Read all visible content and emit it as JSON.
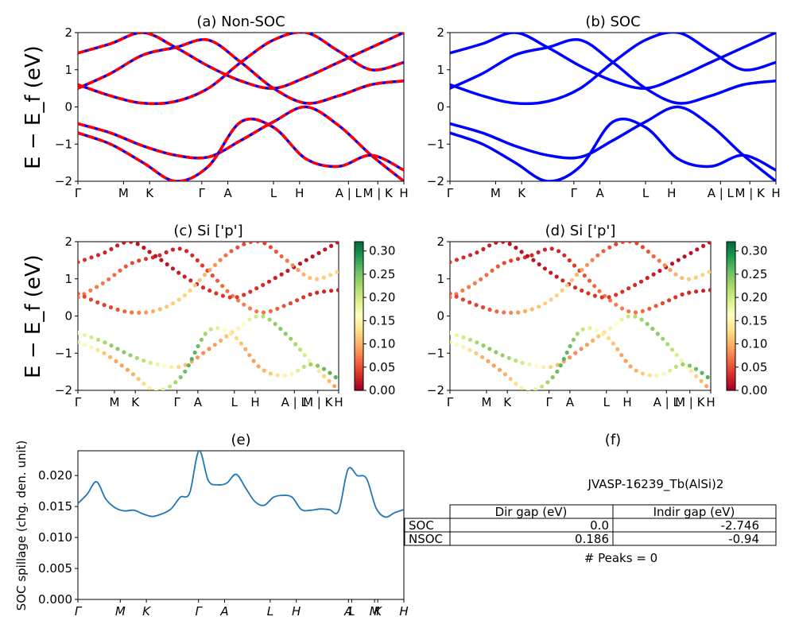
{
  "titles": {
    "a": "(a) Non-SOC",
    "b": "(b) SOC",
    "c": "(c)  Si ['p']",
    "d": "(d) Si ['p']",
    "e": "(e)",
    "f": "(f)"
  },
  "ylabels": {
    "top": "E − E_f (eV)",
    "mid": "E − E_f (eV)",
    "e": "SOC spillage (chg. den. unit)"
  },
  "kpath_labels": [
    "Γ",
    "M",
    "K",
    "Γ",
    "A",
    "L",
    "H",
    "A | L",
    "M | K",
    "H"
  ],
  "colors": {
    "red": "#ff0000",
    "blue": "#0000ff",
    "spillage": "#1f77b4"
  },
  "info": {
    "material": "JVASP-16239_Tb(AlSi)2",
    "peaks": "# Peaks = 0"
  },
  "table": {
    "headers": [
      "Dir gap (eV)",
      "Indir gap (eV)"
    ],
    "rows": [
      {
        "label": "SOC",
        "dir": "0.0",
        "indir": "-2.746"
      },
      {
        "label": "NSOC",
        "dir": "0.186",
        "indir": "-0.94"
      }
    ]
  },
  "chart_data": [
    {
      "id": "a",
      "type": "line",
      "title": "(a) Non-SOC",
      "ylabel": "E − E_f (eV)",
      "ylim": [
        -2,
        2
      ],
      "yticks": [
        -2,
        -1,
        0,
        1,
        2
      ],
      "xticks": [
        "Γ",
        "M",
        "K",
        "Γ",
        "A",
        "L",
        "H",
        "A | L",
        "M | K",
        "H"
      ],
      "series": [
        {
          "values": [
            -0.45,
            -0.7,
            -1.05,
            -1.3,
            -1.35,
            -0.9,
            -0.4,
            0.0,
            -0.5,
            -1.3,
            -2.0
          ]
        },
        {
          "values": [
            0.5,
            0.9,
            1.4,
            1.6,
            1.8,
            1.2,
            0.5,
            0.1,
            0.3,
            0.6,
            0.7
          ]
        },
        {
          "values": [
            1.45,
            1.7,
            2.0,
            1.6,
            1.1,
            0.7,
            0.5,
            0.8,
            1.2,
            1.6,
            2.0
          ]
        },
        {
          "values": [
            -0.7,
            -1.0,
            -1.5,
            -2.0,
            -1.6,
            -0.4,
            -0.55,
            -1.4,
            -1.6,
            -1.3,
            -1.7
          ]
        },
        {
          "values": [
            0.6,
            0.3,
            0.1,
            0.15,
            0.5,
            1.2,
            1.8,
            2.0,
            1.5,
            1.0,
            1.2
          ]
        }
      ]
    },
    {
      "id": "b",
      "type": "line",
      "title": "(b) SOC",
      "ylabel": "",
      "ylim": [
        -2,
        2
      ],
      "yticks": [
        -2,
        -1,
        0,
        1,
        2
      ],
      "xticks": [
        "Γ",
        "M",
        "K",
        "Γ",
        "A",
        "L",
        "H",
        "A | L",
        "M | K",
        "H"
      ],
      "series": [
        {
          "values": [
            -0.45,
            -0.7,
            -1.05,
            -1.3,
            -1.35,
            -0.9,
            -0.4,
            0.0,
            -0.5,
            -1.3,
            -2.0
          ]
        },
        {
          "values": [
            0.5,
            0.9,
            1.4,
            1.6,
            1.8,
            1.2,
            0.5,
            0.1,
            0.3,
            0.6,
            0.7
          ]
        },
        {
          "values": [
            1.45,
            1.7,
            2.0,
            1.6,
            1.1,
            0.7,
            0.5,
            0.8,
            1.2,
            1.6,
            2.0
          ]
        },
        {
          "values": [
            -0.7,
            -1.0,
            -1.5,
            -2.0,
            -1.6,
            -0.4,
            -0.55,
            -1.4,
            -1.6,
            -1.3,
            -1.7
          ]
        },
        {
          "values": [
            0.6,
            0.3,
            0.1,
            0.15,
            0.5,
            1.2,
            1.8,
            2.0,
            1.5,
            1.0,
            1.2
          ]
        }
      ]
    },
    {
      "id": "c",
      "type": "scatter",
      "title": "(c)  Si ['p']",
      "ylabel": "E − E_f (eV)",
      "ylim": [
        -2,
        2
      ],
      "yticks": [
        -2,
        -1,
        0,
        1,
        2
      ],
      "xticks": [
        "Γ",
        "M",
        "K",
        "Γ",
        "A",
        "L",
        "H",
        "A | L",
        "M | K",
        "H"
      ],
      "colorbar": {
        "range": [
          0,
          0.32
        ],
        "ticks": [
          0.0,
          0.05,
          0.1,
          0.15,
          0.2,
          0.25,
          0.3
        ]
      },
      "series": [
        {
          "values": [
            -0.45,
            -0.7,
            -1.05,
            -1.3,
            -1.35,
            -0.9,
            -0.4,
            0.0,
            -0.5,
            -1.3,
            -2.0
          ],
          "weight": 0.2
        },
        {
          "values": [
            0.5,
            0.9,
            1.4,
            1.6,
            1.8,
            1.2,
            0.5,
            0.1,
            0.3,
            0.6,
            0.7
          ],
          "weight": 0.06
        },
        {
          "values": [
            1.45,
            1.7,
            2.0,
            1.6,
            1.1,
            0.7,
            0.5,
            0.8,
            1.2,
            1.6,
            2.0
          ],
          "weight": 0.03
        },
        {
          "values": [
            -0.7,
            -1.0,
            -1.5,
            -2.0,
            -1.6,
            -0.4,
            -0.55,
            -1.4,
            -1.6,
            -1.3,
            -1.7
          ],
          "weight": 0.22
        },
        {
          "values": [
            0.6,
            0.3,
            0.1,
            0.15,
            0.5,
            1.2,
            1.8,
            2.0,
            1.5,
            1.0,
            1.2
          ],
          "weight": 0.1
        }
      ]
    },
    {
      "id": "d",
      "type": "scatter",
      "title": "(d) Si ['p']",
      "ylabel": "",
      "ylim": [
        -2,
        2
      ],
      "yticks": [
        -2,
        -1,
        0,
        1,
        2
      ],
      "xticks": [
        "Γ",
        "M",
        "K",
        "Γ",
        "A",
        "L",
        "H",
        "A | L",
        "M | K",
        "H"
      ],
      "colorbar": {
        "range": [
          0,
          0.32
        ],
        "ticks": [
          0.0,
          0.05,
          0.1,
          0.15,
          0.2,
          0.25,
          0.3
        ]
      },
      "series": [
        {
          "values": [
            -0.45,
            -0.7,
            -1.05,
            -1.3,
            -1.35,
            -0.9,
            -0.4,
            0.0,
            -0.5,
            -1.3,
            -2.0
          ],
          "weight": 0.2
        },
        {
          "values": [
            0.5,
            0.9,
            1.4,
            1.6,
            1.8,
            1.2,
            0.5,
            0.1,
            0.3,
            0.6,
            0.7
          ],
          "weight": 0.06
        },
        {
          "values": [
            1.45,
            1.7,
            2.0,
            1.6,
            1.1,
            0.7,
            0.5,
            0.8,
            1.2,
            1.6,
            2.0
          ],
          "weight": 0.03
        },
        {
          "values": [
            -0.7,
            -1.0,
            -1.5,
            -2.0,
            -1.6,
            -0.4,
            -0.55,
            -1.4,
            -1.6,
            -1.3,
            -1.7
          ],
          "weight": 0.22
        },
        {
          "values": [
            0.6,
            0.3,
            0.1,
            0.15,
            0.5,
            1.2,
            1.8,
            2.0,
            1.5,
            1.0,
            1.2
          ],
          "weight": 0.1
        }
      ]
    },
    {
      "id": "e",
      "type": "line",
      "title": "(e)",
      "ylabel": "SOC spillage (chg. den. unit)",
      "ylim": [
        0,
        0.024
      ],
      "yticks": [
        0.0,
        0.005,
        0.01,
        0.015,
        0.02
      ],
      "xticks": [
        "Γ",
        "M",
        "K",
        "Γ",
        "A",
        "L",
        "H",
        "A",
        "L",
        "M",
        "K",
        "H"
      ],
      "values": [
        0.0155,
        0.017,
        0.019,
        0.0162,
        0.0148,
        0.0143,
        0.0144,
        0.0138,
        0.0134,
        0.0138,
        0.0146,
        0.0165,
        0.0172,
        0.024,
        0.0192,
        0.0185,
        0.0188,
        0.0202,
        0.018,
        0.0158,
        0.0152,
        0.0165,
        0.0168,
        0.0165,
        0.0145,
        0.0144,
        0.0146,
        0.0145,
        0.0143,
        0.021,
        0.02,
        0.0195,
        0.0148,
        0.0133,
        0.014,
        0.0145
      ]
    }
  ]
}
